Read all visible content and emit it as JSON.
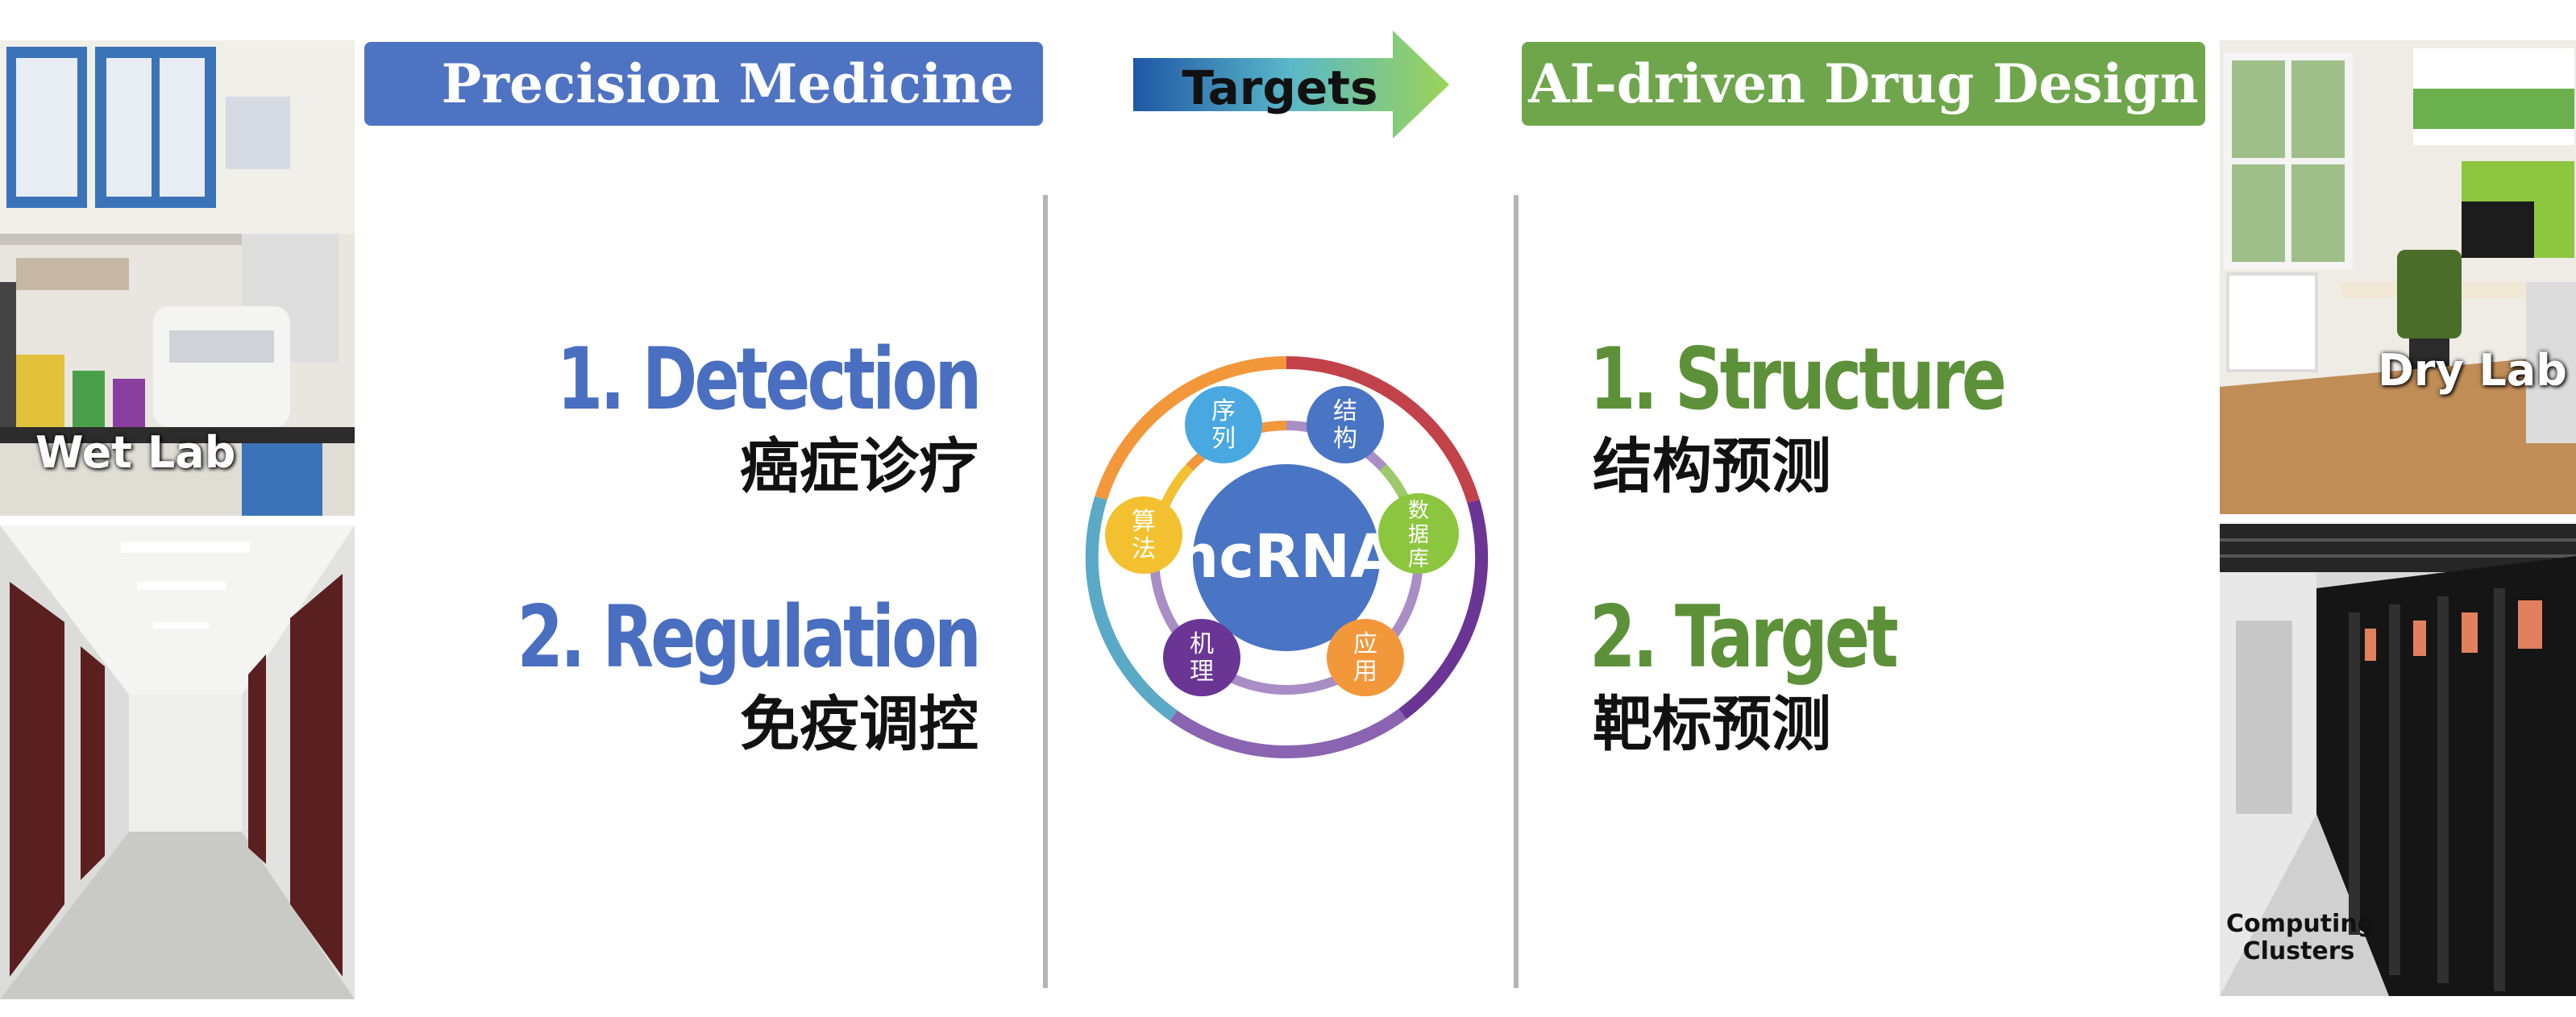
{
  "left_panel": {
    "title": "Precision Medicine",
    "items": [
      {
        "en": "1. Detection",
        "zh": "癌症诊疗"
      },
      {
        "en": "2. Regulation",
        "zh": "免疫调控"
      }
    ],
    "photos": [
      {
        "label": "Wet Lab"
      },
      {
        "label": ""
      }
    ]
  },
  "center": {
    "arrow_label": "Targets",
    "hub_label": "ncRNA",
    "satellites": [
      {
        "line1": "序",
        "line2": "列",
        "color": "#4aa8e0"
      },
      {
        "line1": "结",
        "line2": "构",
        "color": "#4a74c4"
      },
      {
        "line1": "数",
        "line2": "据",
        "line3": "库",
        "color": "#8cc63f"
      },
      {
        "line1": "应",
        "line2": "用",
        "color": "#f3973b"
      },
      {
        "line1": "机",
        "line2": "理",
        "color": "#6a3595"
      },
      {
        "line1": "算",
        "line2": "法",
        "color": "#f3c12f"
      }
    ]
  },
  "right_panel": {
    "title": "AI-driven Drug Design",
    "items": [
      {
        "en": "1. Structure",
        "zh": "结构预测"
      },
      {
        "en": "2. Target",
        "zh": "靶标预测"
      }
    ],
    "photos": [
      {
        "label": "Dry Lab"
      },
      {
        "label_line1": "Computing",
        "label_line2": "Clusters"
      }
    ]
  },
  "colors": {
    "left_accent": "#4f73c3",
    "right_accent": "#6fa64c",
    "hub": "#4a74c4"
  }
}
